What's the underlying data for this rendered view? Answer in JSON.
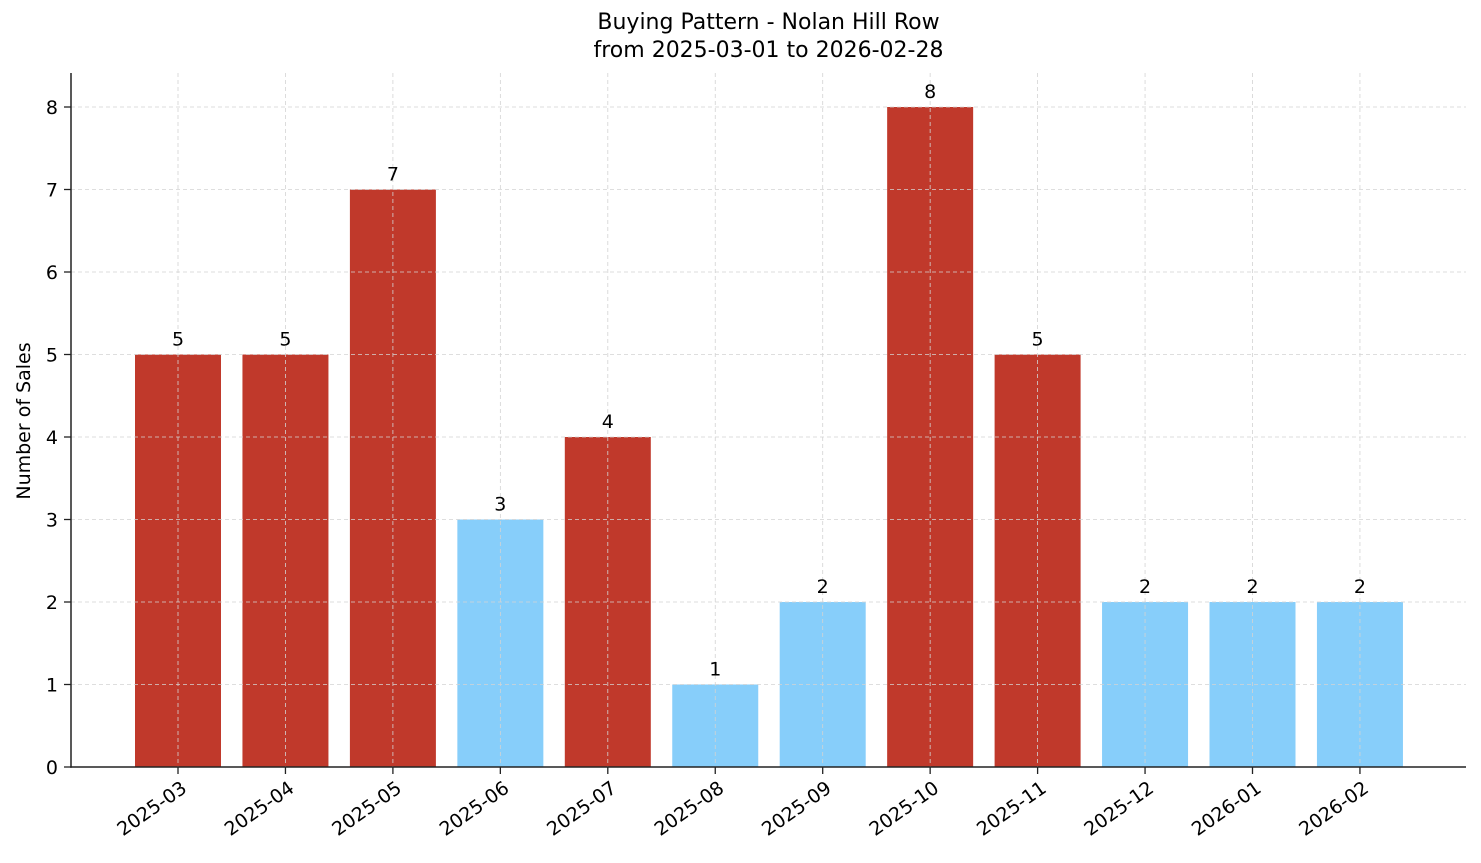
{
  "chart_data": {
    "type": "bar",
    "title": "Buying Pattern - Nolan Hill Row",
    "subtitle": "from 2025-03-01 to 2026-02-28",
    "xlabel": "",
    "ylabel": "Number of Sales",
    "categories": [
      "2025-03",
      "2025-04",
      "2025-05",
      "2025-06",
      "2025-07",
      "2025-08",
      "2025-09",
      "2025-10",
      "2025-11",
      "2025-12",
      "2026-01",
      "2026-02"
    ],
    "values": [
      5,
      5,
      7,
      3,
      4,
      1,
      2,
      8,
      5,
      2,
      2,
      2
    ],
    "bar_colors": [
      "#c0392b",
      "#c0392b",
      "#c0392b",
      "#87cefa",
      "#c0392b",
      "#87cefa",
      "#87cefa",
      "#c0392b",
      "#c0392b",
      "#87cefa",
      "#87cefa",
      "#87cefa"
    ],
    "data_labels": [
      "5",
      "5",
      "7",
      "3",
      "4",
      "1",
      "2",
      "8",
      "5",
      "2",
      "2",
      "2"
    ],
    "yticks": [
      0,
      1,
      2,
      3,
      4,
      5,
      6,
      7,
      8
    ],
    "ylim": [
      0,
      8.4
    ],
    "grid": true,
    "legend": null,
    "colors": {
      "high": "#c0392b",
      "low": "#87cefa"
    }
  }
}
